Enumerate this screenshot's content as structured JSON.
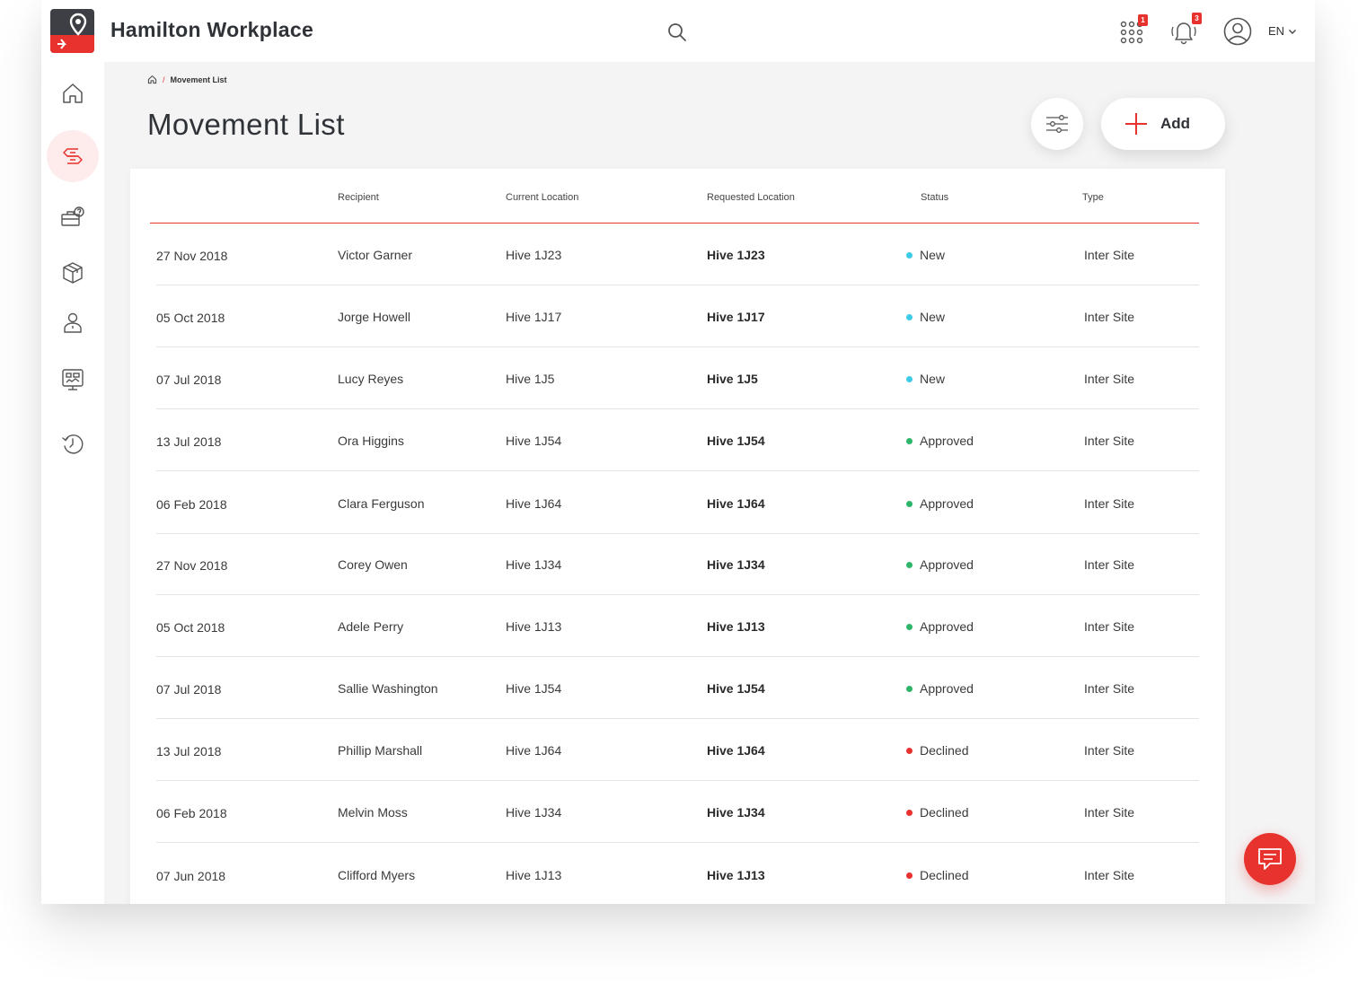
{
  "app": {
    "brand": "Hamilton Workplace"
  },
  "header": {
    "apps_badge": "1",
    "notifications_badge": "3",
    "language": "EN"
  },
  "breadcrumb": {
    "current": "Movement List"
  },
  "page": {
    "title": "Movement List",
    "add_label": "Add"
  },
  "colors": {
    "accent": "#e8322d",
    "new": "#3ecbe8",
    "approved": "#2fb56a",
    "declined": "#e8322d"
  },
  "table": {
    "columns": [
      "",
      "Recipient",
      "Current Location",
      "Requested Location",
      "Status",
      "Type"
    ],
    "rows": [
      {
        "date": "27 Nov 2018",
        "recipient": "Victor Garner",
        "current": "Hive 1J23",
        "requested": "Hive 1J23",
        "status": "New",
        "type": "Inter Site"
      },
      {
        "date": "05 Oct 2018",
        "recipient": "Jorge Howell",
        "current": "Hive 1J17",
        "requested": "Hive 1J17",
        "status": "New",
        "type": "Inter Site"
      },
      {
        "date": "07 Jul 2018",
        "recipient": "Lucy Reyes",
        "current": "Hive 1J5",
        "requested": "Hive 1J5",
        "status": "New",
        "type": "Inter Site"
      },
      {
        "date": "13 Jul 2018",
        "recipient": "Ora Higgins",
        "current": "Hive 1J54",
        "requested": "Hive 1J54",
        "status": "Approved",
        "type": "Inter Site"
      },
      {
        "date": "06 Feb 2018",
        "recipient": "Clara Ferguson",
        "current": "Hive 1J64",
        "requested": "Hive 1J64",
        "status": "Approved",
        "type": "Inter Site"
      },
      {
        "date": "27 Nov 2018",
        "recipient": "Corey Owen",
        "current": "Hive 1J34",
        "requested": "Hive 1J34",
        "status": "Approved",
        "type": "Inter Site"
      },
      {
        "date": "05 Oct 2018",
        "recipient": "Adele Perry",
        "current": "Hive 1J13",
        "requested": "Hive 1J13",
        "status": "Approved",
        "type": "Inter Site"
      },
      {
        "date": "07 Jul 2018",
        "recipient": "Sallie Washington",
        "current": "Hive 1J54",
        "requested": "Hive 1J54",
        "status": "Approved",
        "type": "Inter Site"
      },
      {
        "date": "13 Jul 2018",
        "recipient": "Phillip Marshall",
        "current": "Hive 1J64",
        "requested": "Hive 1J64",
        "status": "Declined",
        "type": "Inter Site"
      },
      {
        "date": "06 Feb 2018",
        "recipient": "Melvin Moss",
        "current": "Hive 1J34",
        "requested": "Hive 1J34",
        "status": "Declined",
        "type": "Inter Site"
      },
      {
        "date": "07 Jun 2018",
        "recipient": "Clifford Myers",
        "current": "Hive 1J13",
        "requested": "Hive 1J13",
        "status": "Declined",
        "type": "Inter Site"
      }
    ]
  },
  "sidebar": {
    "items": [
      {
        "icon": "home-icon"
      },
      {
        "icon": "movement-icon",
        "active": true
      },
      {
        "icon": "toolbox-help-icon"
      },
      {
        "icon": "package-icon"
      },
      {
        "icon": "person-icon"
      },
      {
        "icon": "dashboard-icon"
      },
      {
        "icon": "history-icon"
      }
    ]
  }
}
